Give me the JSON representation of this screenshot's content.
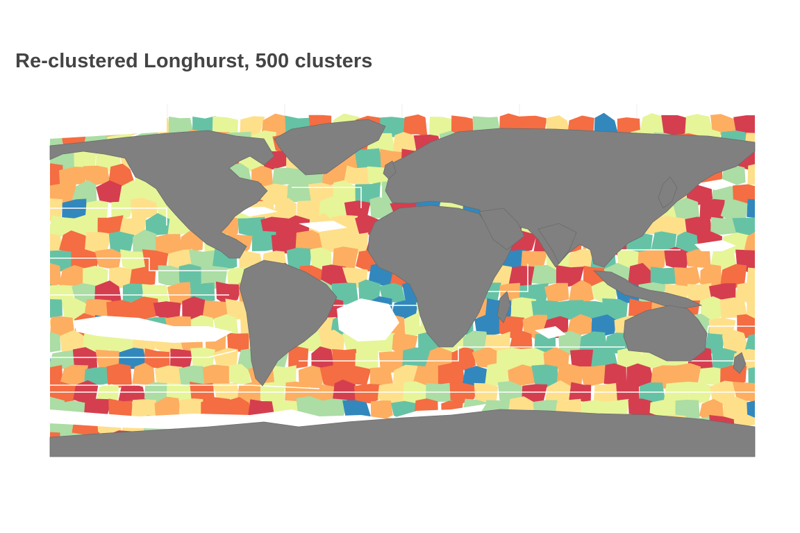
{
  "title": "Re-clustered Longhurst, 500 clusters",
  "palette": [
    "#d53e4f",
    "#f46d43",
    "#fdae61",
    "#fee08b",
    "#e6f598",
    "#abdda4",
    "#66c2a5",
    "#3288bd"
  ],
  "colors": {
    "land": "#808080",
    "land_border": "#6a6a6a",
    "province_border": "#ffffff",
    "missing": "#ffffff",
    "title_text": "#444444"
  },
  "map": {
    "projection": "equirectangular",
    "lon_range": [
      -180,
      180
    ],
    "lat_range": [
      -90,
      90
    ],
    "n_clusters": 500,
    "grid": false,
    "legend": "none"
  }
}
